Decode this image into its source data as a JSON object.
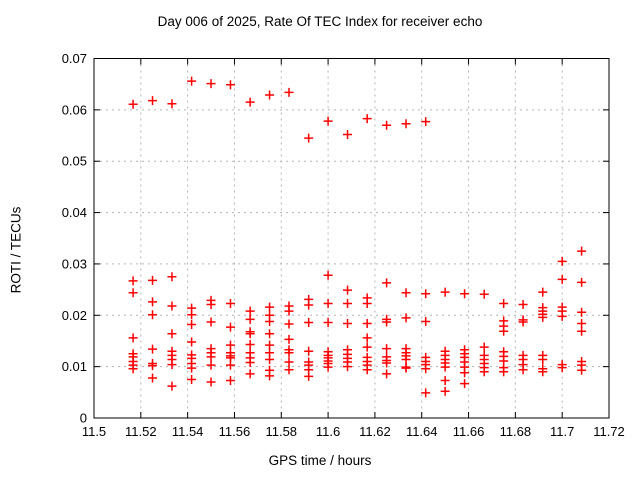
{
  "page": {
    "background": "#ffffff"
  },
  "chart_data": {
    "type": "scatter",
    "title": "Day 006 of 2025, Rate Of TEC Index for receiver echo",
    "xlabel": "GPS time / hours",
    "ylabel": "ROTI / TECUs",
    "xlim": [
      11.5,
      11.72
    ],
    "ylim": [
      0,
      0.07
    ],
    "grid": true,
    "legend_position": "none",
    "marker": "plus",
    "colors": {
      "marker": "#ff0000",
      "grid": "#b4b4b4",
      "axis": "#000000",
      "text": "#000000"
    },
    "xticks": [
      {
        "v": 11.5,
        "label": "11.5"
      },
      {
        "v": 11.52,
        "label": "11.52"
      },
      {
        "v": 11.54,
        "label": "11.54"
      },
      {
        "v": 11.56,
        "label": "11.56"
      },
      {
        "v": 11.58,
        "label": "11.58"
      },
      {
        "v": 11.6,
        "label": "11.6"
      },
      {
        "v": 11.62,
        "label": "11.62"
      },
      {
        "v": 11.64,
        "label": "11.64"
      },
      {
        "v": 11.66,
        "label": "11.66"
      },
      {
        "v": 11.68,
        "label": "11.68"
      },
      {
        "v": 11.7,
        "label": "11.7"
      },
      {
        "v": 11.72,
        "label": "11.72"
      }
    ],
    "yticks": [
      {
        "v": 0,
        "label": "0"
      },
      {
        "v": 0.01,
        "label": "0.01"
      },
      {
        "v": 0.02,
        "label": "0.02"
      },
      {
        "v": 0.03,
        "label": "0.03"
      },
      {
        "v": 0.04,
        "label": "0.04"
      },
      {
        "v": 0.05,
        "label": "0.05"
      },
      {
        "v": 0.06,
        "label": "0.06"
      },
      {
        "v": 0.07,
        "label": "0.07"
      }
    ],
    "series": [
      {
        "name": "ROTI",
        "points": [
          [
            11.5167,
            0.0611
          ],
          [
            11.5167,
            0.0267
          ],
          [
            11.5167,
            0.0244
          ],
          [
            11.5167,
            0.0156
          ],
          [
            11.5167,
            0.0125
          ],
          [
            11.5167,
            0.0119
          ],
          [
            11.5167,
            0.011
          ],
          [
            11.5167,
            0.0103
          ],
          [
            11.5167,
            0.0096
          ],
          [
            11.525,
            0.0618
          ],
          [
            11.525,
            0.0268
          ],
          [
            11.525,
            0.0226
          ],
          [
            11.525,
            0.0201
          ],
          [
            11.525,
            0.0134
          ],
          [
            11.525,
            0.0106
          ],
          [
            11.525,
            0.0102
          ],
          [
            11.525,
            0.0078
          ],
          [
            11.5333,
            0.0612
          ],
          [
            11.5333,
            0.0275
          ],
          [
            11.5333,
            0.0218
          ],
          [
            11.5333,
            0.0164
          ],
          [
            11.5333,
            0.013
          ],
          [
            11.5333,
            0.0122
          ],
          [
            11.5333,
            0.0114
          ],
          [
            11.5333,
            0.0104
          ],
          [
            11.5333,
            0.0062
          ],
          [
            11.5417,
            0.0656
          ],
          [
            11.5417,
            0.0214
          ],
          [
            11.5417,
            0.0201
          ],
          [
            11.5417,
            0.0182
          ],
          [
            11.5417,
            0.0148
          ],
          [
            11.5417,
            0.0123
          ],
          [
            11.5417,
            0.0116
          ],
          [
            11.5417,
            0.0106
          ],
          [
            11.5417,
            0.0097
          ],
          [
            11.5417,
            0.0075
          ],
          [
            11.55,
            0.0651
          ],
          [
            11.55,
            0.0229
          ],
          [
            11.55,
            0.0221
          ],
          [
            11.55,
            0.0187
          ],
          [
            11.55,
            0.0135
          ],
          [
            11.55,
            0.0127
          ],
          [
            11.55,
            0.0119
          ],
          [
            11.55,
            0.0103
          ],
          [
            11.55,
            0.007
          ],
          [
            11.5583,
            0.0649
          ],
          [
            11.5583,
            0.0223
          ],
          [
            11.5583,
            0.0177
          ],
          [
            11.5583,
            0.0142
          ],
          [
            11.5583,
            0.0127
          ],
          [
            11.5583,
            0.0121
          ],
          [
            11.5583,
            0.0117
          ],
          [
            11.5583,
            0.0103
          ],
          [
            11.5583,
            0.0073
          ],
          [
            11.5667,
            0.0615
          ],
          [
            11.5667,
            0.0208
          ],
          [
            11.5667,
            0.0192
          ],
          [
            11.5667,
            0.0168
          ],
          [
            11.5667,
            0.0164
          ],
          [
            11.5667,
            0.0143
          ],
          [
            11.5667,
            0.0127
          ],
          [
            11.5667,
            0.0117
          ],
          [
            11.5667,
            0.0108
          ],
          [
            11.5667,
            0.0086
          ],
          [
            11.575,
            0.0629
          ],
          [
            11.575,
            0.0216
          ],
          [
            11.575,
            0.02
          ],
          [
            11.575,
            0.0188
          ],
          [
            11.575,
            0.0164
          ],
          [
            11.575,
            0.0142
          ],
          [
            11.575,
            0.0127
          ],
          [
            11.575,
            0.0114
          ],
          [
            11.575,
            0.0093
          ],
          [
            11.575,
            0.0082
          ],
          [
            11.5833,
            0.0634
          ],
          [
            11.5833,
            0.0218
          ],
          [
            11.5833,
            0.0208
          ],
          [
            11.5833,
            0.0183
          ],
          [
            11.5833,
            0.0153
          ],
          [
            11.5833,
            0.0133
          ],
          [
            11.5833,
            0.0127
          ],
          [
            11.5833,
            0.0109
          ],
          [
            11.5833,
            0.0094
          ],
          [
            11.5917,
            0.0545
          ],
          [
            11.5917,
            0.0231
          ],
          [
            11.5917,
            0.022
          ],
          [
            11.5917,
            0.0186
          ],
          [
            11.5917,
            0.013
          ],
          [
            11.5917,
            0.0109
          ],
          [
            11.5917,
            0.0103
          ],
          [
            11.5917,
            0.0094
          ],
          [
            11.5917,
            0.0081
          ],
          [
            11.6,
            0.0578
          ],
          [
            11.6,
            0.0278
          ],
          [
            11.6,
            0.0223
          ],
          [
            11.6,
            0.0186
          ],
          [
            11.6,
            0.0129
          ],
          [
            11.6,
            0.0122
          ],
          [
            11.6,
            0.0117
          ],
          [
            11.6,
            0.0111
          ],
          [
            11.6,
            0.0106
          ],
          [
            11.6,
            0.0099
          ],
          [
            11.6083,
            0.0552
          ],
          [
            11.6083,
            0.0249
          ],
          [
            11.6083,
            0.0223
          ],
          [
            11.6083,
            0.0184
          ],
          [
            11.6083,
            0.0133
          ],
          [
            11.6083,
            0.0124
          ],
          [
            11.6083,
            0.0116
          ],
          [
            11.6083,
            0.0109
          ],
          [
            11.6083,
            0.01
          ],
          [
            11.6167,
            0.0583
          ],
          [
            11.6167,
            0.0234
          ],
          [
            11.6167,
            0.0223
          ],
          [
            11.6167,
            0.0184
          ],
          [
            11.6167,
            0.0156
          ],
          [
            11.6167,
            0.0138
          ],
          [
            11.6167,
            0.0118
          ],
          [
            11.6167,
            0.011
          ],
          [
            11.6167,
            0.0103
          ],
          [
            11.6167,
            0.0094
          ],
          [
            11.625,
            0.057
          ],
          [
            11.625,
            0.0263
          ],
          [
            11.625,
            0.0192
          ],
          [
            11.625,
            0.0187
          ],
          [
            11.625,
            0.0135
          ],
          [
            11.625,
            0.0119
          ],
          [
            11.625,
            0.0112
          ],
          [
            11.625,
            0.0107
          ],
          [
            11.625,
            0.0086
          ],
          [
            11.6333,
            0.0573
          ],
          [
            11.6333,
            0.0244
          ],
          [
            11.6333,
            0.0195
          ],
          [
            11.6333,
            0.0135
          ],
          [
            11.6333,
            0.0127
          ],
          [
            11.6333,
            0.0121
          ],
          [
            11.6333,
            0.0114
          ],
          [
            11.6333,
            0.0099
          ],
          [
            11.6333,
            0.0097
          ],
          [
            11.6417,
            0.0577
          ],
          [
            11.6417,
            0.0242
          ],
          [
            11.6417,
            0.0188
          ],
          [
            11.6417,
            0.0118
          ],
          [
            11.6417,
            0.011
          ],
          [
            11.6417,
            0.0104
          ],
          [
            11.6417,
            0.0096
          ],
          [
            11.6417,
            0.0049
          ],
          [
            11.65,
            0.0245
          ],
          [
            11.65,
            0.013
          ],
          [
            11.65,
            0.0122
          ],
          [
            11.65,
            0.0114
          ],
          [
            11.65,
            0.0107
          ],
          [
            11.65,
            0.0099
          ],
          [
            11.65,
            0.0073
          ],
          [
            11.65,
            0.0052
          ],
          [
            11.6583,
            0.0242
          ],
          [
            11.6583,
            0.0133
          ],
          [
            11.6583,
            0.0125
          ],
          [
            11.6583,
            0.0118
          ],
          [
            11.6583,
            0.0109
          ],
          [
            11.6583,
            0.0099
          ],
          [
            11.6583,
            0.0088
          ],
          [
            11.6583,
            0.0067
          ],
          [
            11.6667,
            0.0241
          ],
          [
            11.6667,
            0.0138
          ],
          [
            11.6667,
            0.0122
          ],
          [
            11.6667,
            0.0114
          ],
          [
            11.6667,
            0.0106
          ],
          [
            11.6667,
            0.0098
          ],
          [
            11.6667,
            0.009
          ],
          [
            11.675,
            0.0223
          ],
          [
            11.675,
            0.0189
          ],
          [
            11.675,
            0.0179
          ],
          [
            11.675,
            0.0169
          ],
          [
            11.675,
            0.0129
          ],
          [
            11.675,
            0.012
          ],
          [
            11.675,
            0.0111
          ],
          [
            11.675,
            0.0098
          ],
          [
            11.675,
            0.009
          ],
          [
            11.6833,
            0.0221
          ],
          [
            11.6833,
            0.0191
          ],
          [
            11.6833,
            0.0187
          ],
          [
            11.6833,
            0.0122
          ],
          [
            11.6833,
            0.0114
          ],
          [
            11.6833,
            0.0104
          ],
          [
            11.6833,
            0.0094
          ],
          [
            11.6917,
            0.0245
          ],
          [
            11.6917,
            0.0215
          ],
          [
            11.6917,
            0.0208
          ],
          [
            11.6917,
            0.0202
          ],
          [
            11.6917,
            0.0196
          ],
          [
            11.6917,
            0.0122
          ],
          [
            11.6917,
            0.0114
          ],
          [
            11.6917,
            0.0096
          ],
          [
            11.6917,
            0.009
          ],
          [
            11.7,
            0.0305
          ],
          [
            11.7,
            0.027
          ],
          [
            11.7,
            0.0216
          ],
          [
            11.7,
            0.0208
          ],
          [
            11.7,
            0.0198
          ],
          [
            11.7,
            0.0104
          ],
          [
            11.7,
            0.0098
          ],
          [
            11.7083,
            0.0325
          ],
          [
            11.7083,
            0.0264
          ],
          [
            11.7083,
            0.0206
          ],
          [
            11.7083,
            0.0184
          ],
          [
            11.7083,
            0.0169
          ],
          [
            11.7083,
            0.011
          ],
          [
            11.7083,
            0.0103
          ],
          [
            11.7083,
            0.0093
          ]
        ]
      }
    ]
  }
}
